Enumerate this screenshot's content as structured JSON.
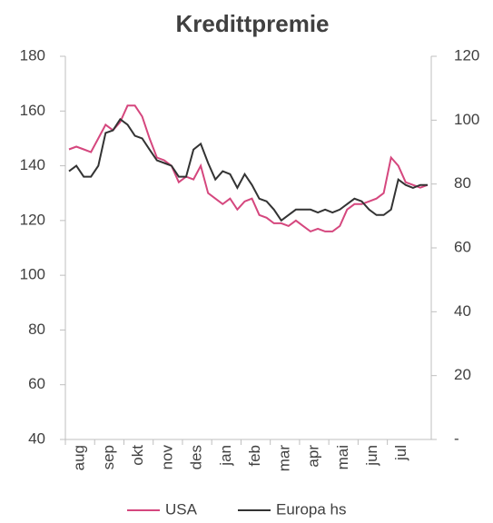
{
  "chart_data": {
    "type": "line",
    "title": "Kredittpremie",
    "categories": [
      "aug",
      null,
      null,
      null,
      "sep",
      null,
      null,
      null,
      "okt",
      null,
      null,
      null,
      "nov",
      null,
      null,
      null,
      "des",
      null,
      null,
      null,
      "jan",
      null,
      null,
      null,
      "feb",
      null,
      null,
      null,
      "mar",
      null,
      null,
      null,
      "apr",
      null,
      null,
      null,
      "mai",
      null,
      null,
      null,
      "jun",
      null,
      null,
      null,
      "jul",
      null,
      null,
      null,
      null,
      null
    ],
    "series": [
      {
        "name": "USA",
        "color": "#d5477e",
        "values": [
          146,
          147,
          146,
          145,
          150,
          155,
          153,
          156,
          162,
          162,
          158,
          150,
          143,
          142,
          140,
          134,
          136,
          135,
          140,
          130,
          128,
          126,
          128,
          124,
          127,
          128,
          122,
          121,
          119,
          119,
          118,
          120,
          118,
          116,
          117,
          116,
          116,
          118,
          124,
          126,
          126,
          127,
          128,
          130,
          143,
          140,
          134,
          133,
          132,
          133
        ]
      },
      {
        "name": "Europa hs",
        "color": "#333333",
        "axis": "y2",
        "values": [
          84,
          85.7,
          82.3,
          82.3,
          85.7,
          96,
          96.8,
          100.3,
          98.6,
          95.1,
          94.3,
          90.8,
          87.4,
          86.6,
          85.7,
          82.3,
          82.3,
          90.8,
          92.6,
          86.6,
          81.4,
          84,
          83.1,
          78.8,
          83.1,
          79.7,
          75.4,
          74.6,
          72,
          68.6,
          70.3,
          72,
          72,
          72,
          71.1,
          72,
          71.1,
          72,
          73.7,
          75.4,
          74.6,
          72,
          70.3,
          70.3,
          72,
          81.4,
          79.7,
          78.8,
          79.7,
          79.7
        ]
      }
    ],
    "ylim": [
      40,
      180
    ],
    "yticks": [
      40,
      60,
      80,
      100,
      120,
      140,
      160,
      180
    ],
    "y2lim": [
      0,
      120
    ],
    "y2ticks": [
      {
        "value": 0,
        "label": "-"
      },
      20,
      40,
      60,
      80,
      100,
      120
    ],
    "legend": "bottom"
  }
}
